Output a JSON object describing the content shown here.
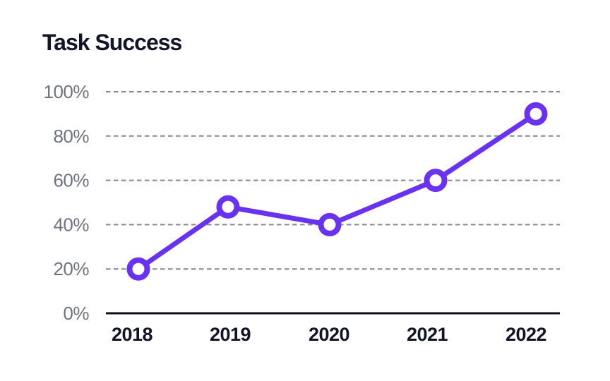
{
  "chart_data": {
    "type": "line",
    "title": "Task Success",
    "categories": [
      "2018",
      "2019",
      "2020",
      "2021",
      "2022"
    ],
    "series": [
      {
        "name": "Task Success",
        "values": [
          20,
          48,
          40,
          60,
          90
        ]
      }
    ],
    "xlabel": "",
    "ylabel": "",
    "ylim": [
      0,
      100
    ],
    "yticks": [
      0,
      20,
      40,
      60,
      80,
      100
    ],
    "ytick_suffix": "%",
    "grid": "horizontal-dashed",
    "legend_position": "none",
    "colors": {
      "line": "#6931f0",
      "marker_fill": "#ffffff",
      "grid": "#84868e",
      "axis": "#0d101c",
      "ytick_label": "#6f7380",
      "xtick_label": "#121428",
      "title": "#121428",
      "background": "#ffffff"
    }
  }
}
